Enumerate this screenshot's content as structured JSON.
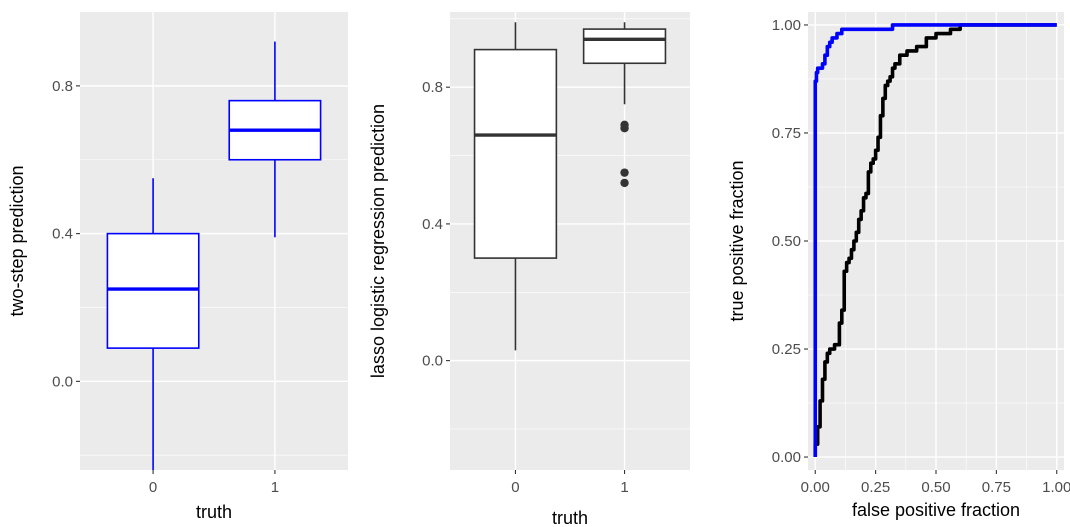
{
  "chart_data": [
    {
      "type": "box",
      "panel": "left",
      "xlabel": "truth",
      "ylabel": "two-step prediction",
      "categories": [
        "0",
        "1"
      ],
      "ylim": [
        -0.24,
        1.0
      ],
      "yticks": [
        0.0,
        0.4,
        0.8
      ],
      "yticklabels": [
        "0.0",
        "0.4",
        "0.8"
      ],
      "color": "#0000ff",
      "boxes": [
        {
          "category": "0",
          "whisker_low": -0.24,
          "q1": 0.09,
          "median": 0.25,
          "q3": 0.4,
          "whisker_high": 0.55,
          "outliers": []
        },
        {
          "category": "1",
          "whisker_low": 0.39,
          "q1": 0.6,
          "median": 0.68,
          "q3": 0.76,
          "whisker_high": 0.92,
          "outliers": []
        }
      ]
    },
    {
      "type": "box",
      "panel": "middle",
      "xlabel": "truth",
      "ylabel": "lasso logistic regression prediction",
      "categories": [
        "0",
        "1"
      ],
      "ylim": [
        -0.32,
        1.02
      ],
      "yticks": [
        0.0,
        0.4,
        0.8
      ],
      "yticklabels": [
        "0.0",
        "0.4",
        "0.8"
      ],
      "color": "#333333",
      "boxes": [
        {
          "category": "0",
          "whisker_low": 0.03,
          "q1": 0.3,
          "median": 0.66,
          "q3": 0.91,
          "whisker_high": 0.99,
          "outliers": []
        },
        {
          "category": "1",
          "whisker_low": 0.75,
          "q1": 0.87,
          "median": 0.94,
          "q3": 0.97,
          "whisker_high": 0.99,
          "outliers": [
            0.69,
            0.68,
            0.55,
            0.52
          ]
        }
      ]
    },
    {
      "type": "line",
      "panel": "right",
      "xlabel": "false positive fraction",
      "ylabel": "true positive fraction",
      "xlim": [
        -0.03,
        1.03
      ],
      "ylim": [
        -0.03,
        1.03
      ],
      "xticks": [
        0.0,
        0.25,
        0.5,
        0.75,
        1.0
      ],
      "xticklabels": [
        "0.00",
        "0.25",
        "0.50",
        "0.75",
        "1.00"
      ],
      "yticks": [
        0.0,
        0.25,
        0.5,
        0.75,
        1.0
      ],
      "yticklabels": [
        "0.00",
        "0.25",
        "0.50",
        "0.75",
        "1.00"
      ],
      "series": [
        {
          "color": "#000000",
          "points": [
            [
              0,
              0
            ],
            [
              0,
              0.03
            ],
            [
              0.01,
              0.03
            ],
            [
              0.01,
              0.07
            ],
            [
              0.02,
              0.07
            ],
            [
              0.02,
              0.13
            ],
            [
              0.03,
              0.13
            ],
            [
              0.03,
              0.18
            ],
            [
              0.04,
              0.18
            ],
            [
              0.04,
              0.22
            ],
            [
              0.05,
              0.22
            ],
            [
              0.05,
              0.24
            ],
            [
              0.06,
              0.24
            ],
            [
              0.06,
              0.25
            ],
            [
              0.08,
              0.25
            ],
            [
              0.08,
              0.26
            ],
            [
              0.1,
              0.26
            ],
            [
              0.1,
              0.31
            ],
            [
              0.11,
              0.31
            ],
            [
              0.11,
              0.34
            ],
            [
              0.12,
              0.34
            ],
            [
              0.12,
              0.43
            ],
            [
              0.13,
              0.43
            ],
            [
              0.13,
              0.45
            ],
            [
              0.14,
              0.45
            ],
            [
              0.14,
              0.46
            ],
            [
              0.15,
              0.46
            ],
            [
              0.15,
              0.48
            ],
            [
              0.16,
              0.48
            ],
            [
              0.16,
              0.5
            ],
            [
              0.17,
              0.5
            ],
            [
              0.17,
              0.52
            ],
            [
              0.18,
              0.52
            ],
            [
              0.18,
              0.55
            ],
            [
              0.19,
              0.55
            ],
            [
              0.19,
              0.57
            ],
            [
              0.2,
              0.57
            ],
            [
              0.2,
              0.6
            ],
            [
              0.21,
              0.6
            ],
            [
              0.21,
              0.61
            ],
            [
              0.22,
              0.61
            ],
            [
              0.22,
              0.66
            ],
            [
              0.23,
              0.66
            ],
            [
              0.23,
              0.68
            ],
            [
              0.24,
              0.68
            ],
            [
              0.24,
              0.69
            ],
            [
              0.25,
              0.69
            ],
            [
              0.25,
              0.71
            ],
            [
              0.26,
              0.71
            ],
            [
              0.26,
              0.74
            ],
            [
              0.27,
              0.74
            ],
            [
              0.27,
              0.79
            ],
            [
              0.28,
              0.79
            ],
            [
              0.28,
              0.83
            ],
            [
              0.29,
              0.83
            ],
            [
              0.29,
              0.86
            ],
            [
              0.3,
              0.86
            ],
            [
              0.3,
              0.87
            ],
            [
              0.31,
              0.87
            ],
            [
              0.31,
              0.88
            ],
            [
              0.32,
              0.88
            ],
            [
              0.32,
              0.9
            ],
            [
              0.33,
              0.9
            ],
            [
              0.33,
              0.91
            ],
            [
              0.35,
              0.91
            ],
            [
              0.35,
              0.93
            ],
            [
              0.38,
              0.93
            ],
            [
              0.38,
              0.94
            ],
            [
              0.42,
              0.94
            ],
            [
              0.42,
              0.95
            ],
            [
              0.46,
              0.95
            ],
            [
              0.46,
              0.97
            ],
            [
              0.5,
              0.97
            ],
            [
              0.5,
              0.98
            ],
            [
              0.56,
              0.98
            ],
            [
              0.56,
              0.99
            ],
            [
              0.6,
              0.99
            ],
            [
              0.6,
              1.0
            ],
            [
              1.0,
              1.0
            ]
          ]
        },
        {
          "color": "#0000ff",
          "points": [
            [
              0,
              0
            ],
            [
              0,
              0.87
            ],
            [
              0.005,
              0.87
            ],
            [
              0.005,
              0.89
            ],
            [
              0.01,
              0.89
            ],
            [
              0.01,
              0.9
            ],
            [
              0.03,
              0.9
            ],
            [
              0.03,
              0.91
            ],
            [
              0.04,
              0.91
            ],
            [
              0.04,
              0.93
            ],
            [
              0.05,
              0.93
            ],
            [
              0.05,
              0.95
            ],
            [
              0.06,
              0.95
            ],
            [
              0.06,
              0.96
            ],
            [
              0.07,
              0.96
            ],
            [
              0.07,
              0.97
            ],
            [
              0.09,
              0.97
            ],
            [
              0.09,
              0.98
            ],
            [
              0.11,
              0.98
            ],
            [
              0.11,
              0.99
            ],
            [
              0.32,
              0.99
            ],
            [
              0.32,
              1.0
            ],
            [
              1.0,
              1.0
            ]
          ]
        }
      ]
    }
  ]
}
